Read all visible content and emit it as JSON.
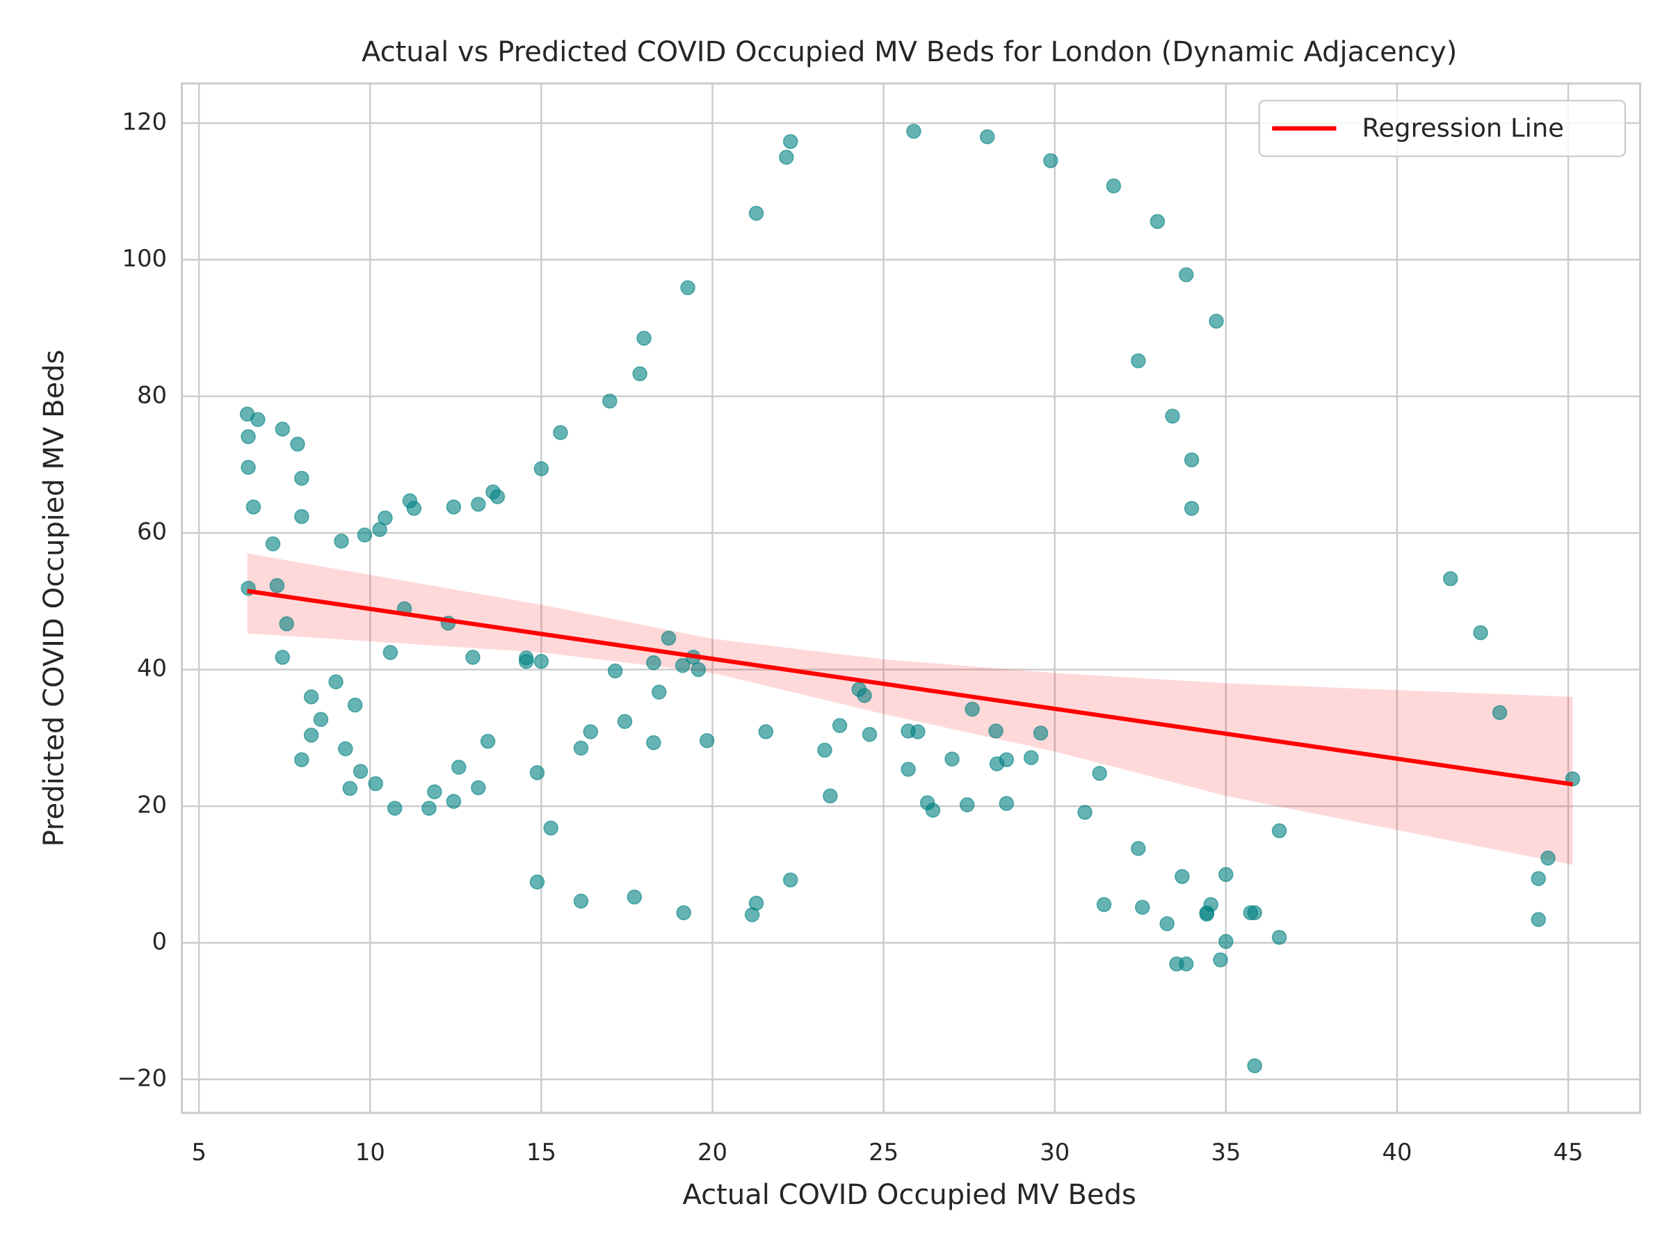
{
  "chart_data": {
    "type": "scatter",
    "title": "Actual vs Predicted COVID Occupied MV Beds for London (Dynamic Adjacency)",
    "xlabel": "Actual COVID Occupied MV Beds",
    "ylabel": "Predicted COVID Occupied MV Beds",
    "xlim": [
      4.5,
      47.1
    ],
    "ylim": [
      -24.9,
      125.8
    ],
    "xticks": [
      5,
      10,
      15,
      20,
      25,
      30,
      35,
      40,
      45
    ],
    "yticks": [
      {
        "value": -20,
        "label": "−20"
      },
      0,
      20,
      40,
      60,
      80,
      100,
      120
    ],
    "grid": true,
    "legend": "upper right",
    "series": [
      {
        "color": "#008080",
        "x": [
          6.41,
          6.44,
          6.44,
          6.44,
          6.59,
          6.72,
          7.16,
          7.28,
          7.44,
          7.44,
          7.56,
          7.88,
          8.0,
          8.0,
          8.0,
          8.28,
          8.28,
          8.56,
          9.0,
          9.16,
          9.28,
          9.41,
          9.56,
          9.72,
          9.84,
          10.16,
          10.28,
          10.44,
          10.59,
          10.72,
          11.0,
          11.16,
          11.28,
          11.72,
          11.88,
          12.28,
          12.44,
          12.44,
          12.59,
          13.0,
          13.16,
          13.16,
          13.44,
          13.59,
          13.72,
          14.56,
          14.56,
          14.88,
          14.88,
          15.0,
          15.0,
          15.28,
          15.56,
          16.16,
          16.16,
          16.44,
          17.0,
          17.16,
          17.44,
          17.72,
          17.88,
          18.0,
          18.28,
          18.28,
          18.44,
          18.72,
          19.13,
          19.16,
          19.28,
          19.44,
          19.59,
          19.84,
          21.16,
          21.28,
          21.28,
          21.56,
          22.16,
          22.28,
          22.28,
          23.28,
          23.44,
          23.72,
          24.28,
          24.44,
          24.59,
          25.72,
          25.72,
          25.88,
          26.0,
          26.28,
          26.44,
          27.0,
          27.44,
          27.59,
          28.03,
          28.28,
          28.31,
          28.59,
          28.59,
          29.31,
          29.59,
          29.88,
          30.88,
          31.31,
          31.44,
          31.72,
          32.44,
          32.44,
          32.56,
          33.0,
          33.28,
          33.44,
          33.56,
          33.72,
          33.84,
          33.84,
          34.0,
          34.0,
          34.44,
          34.44,
          34.56,
          34.72,
          34.84,
          35.0,
          35.0,
          35.72,
          35.84,
          35.84,
          36.56,
          36.56,
          41.56,
          42.44,
          43.0,
          44.13,
          44.13,
          44.41,
          45.13
        ],
        "values": [
          77.4,
          74.1,
          69.6,
          51.9,
          63.8,
          76.6,
          58.4,
          52.3,
          75.2,
          41.8,
          46.7,
          73.0,
          68.0,
          62.4,
          26.8,
          36.0,
          30.4,
          32.7,
          38.2,
          58.8,
          28.4,
          22.6,
          34.8,
          25.1,
          59.7,
          23.3,
          60.5,
          62.2,
          42.5,
          19.7,
          48.9,
          64.7,
          63.6,
          19.7,
          22.1,
          46.8,
          20.7,
          63.8,
          25.7,
          41.8,
          22.7,
          64.2,
          29.5,
          66.0,
          65.3,
          41.7,
          41.2,
          24.9,
          8.9,
          41.2,
          69.4,
          16.8,
          74.7,
          28.5,
          6.1,
          30.9,
          79.3,
          39.8,
          32.4,
          6.7,
          83.3,
          88.5,
          41.0,
          29.3,
          36.7,
          44.6,
          40.6,
          4.4,
          95.9,
          41.8,
          40.0,
          29.6,
          4.1,
          106.8,
          5.8,
          30.9,
          115.0,
          117.3,
          9.2,
          28.2,
          21.5,
          31.8,
          37.1,
          36.2,
          30.5,
          25.4,
          31.0,
          118.8,
          30.9,
          20.5,
          19.4,
          26.9,
          20.2,
          34.2,
          118.0,
          31.0,
          26.2,
          26.8,
          20.4,
          27.1,
          30.7,
          114.5,
          19.1,
          24.8,
          5.6,
          110.8,
          85.2,
          13.8,
          5.2,
          105.6,
          2.8,
          77.1,
          -3.1,
          9.7,
          97.8,
          -3.1,
          70.7,
          63.6,
          4.4,
          4.2,
          5.6,
          91.0,
          -2.5,
          10.0,
          0.2,
          4.4,
          4.4,
          -18.0,
          16.4,
          0.8,
          53.3,
          45.4,
          33.7,
          9.4,
          3.4,
          12.4,
          24.0
        ]
      }
    ],
    "regression": {
      "name": "Regression Line",
      "color": "#ff0000",
      "x": [
        6.41,
        45.13
      ],
      "values": [
        51.5,
        23.2
      ]
    },
    "confidence_band": {
      "color": "#ff0000",
      "x": [
        6.41,
        15,
        20,
        25,
        30,
        35,
        40,
        45.13
      ],
      "upper": [
        57.0,
        49.5,
        44.5,
        41.5,
        39.5,
        38.0,
        37.0,
        36.0
      ],
      "lower": [
        45.3,
        42.5,
        39.5,
        33.5,
        28.0,
        21.5,
        16.5,
        11.4
      ]
    }
  }
}
